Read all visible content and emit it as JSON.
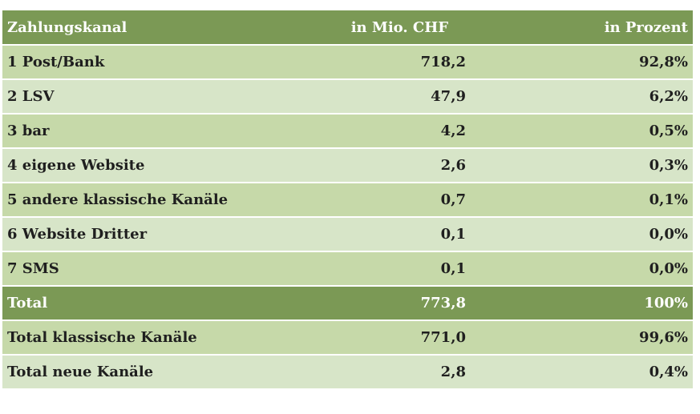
{
  "table": {
    "headers": {
      "channel": "Zahlungskanal",
      "chf": "in Mio. CHF",
      "percent": "in Prozent"
    },
    "rows": [
      {
        "channel": "1 Post/Bank",
        "chf": "718,2",
        "percent": "92,8%"
      },
      {
        "channel": "2 LSV",
        "chf": "47,9",
        "percent": "6,2%"
      },
      {
        "channel": "3 bar",
        "chf": "4,2",
        "percent": "0,5%"
      },
      {
        "channel": "4 eigene Website",
        "chf": "2,6",
        "percent": "0,3%"
      },
      {
        "channel": "5 andere klassische Kanäle",
        "chf": "0,7",
        "percent": "0,1%"
      },
      {
        "channel": "6 Website Dritter",
        "chf": "0,1",
        "percent": "0,0%"
      },
      {
        "channel": "7 SMS",
        "chf": "0,1",
        "percent": "0,0%"
      }
    ],
    "total": {
      "channel": "Total",
      "chf": "773,8",
      "percent": "100%"
    },
    "summary": [
      {
        "channel": "Total klassische Kanäle",
        "chf": "771,0",
        "percent": "99,6%"
      },
      {
        "channel": "Total neue Kanäle",
        "chf": "2,8",
        "percent": "0,4%"
      }
    ]
  },
  "colors": {
    "header_bg": "#7b9955",
    "row_light_a": "#c6d9a9",
    "row_light_b": "#d7e5c8",
    "header_text": "#ffffff",
    "body_text": "#1f1f1f"
  }
}
